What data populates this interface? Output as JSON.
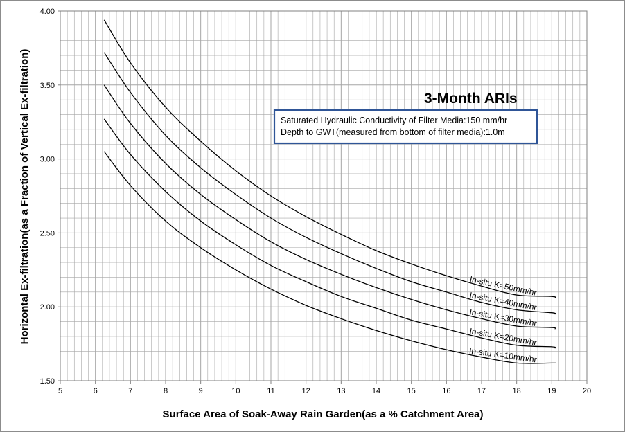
{
  "chart_data": {
    "type": "line",
    "title": "3-Month ARIs",
    "xlabel": "Surface Area of Soak-Away Rain Garden(as a %  Catchment Area)",
    "ylabel": "Horizontal Ex-filtration(as a Fraction of Vertical Ex-filtration)",
    "xlim": [
      5,
      20
    ],
    "ylim": [
      1.5,
      4.0
    ],
    "x_ticks": [
      "5",
      "6",
      "7",
      "8",
      "9",
      "10",
      "11",
      "12",
      "13",
      "14",
      "15",
      "16",
      "17",
      "18",
      "19",
      "20"
    ],
    "y_ticks": [
      "1.50",
      "2.00",
      "2.50",
      "3.00",
      "3.50",
      "4.00"
    ],
    "grid": true,
    "note": {
      "line1": "Saturated Hydraulic Conductivity of Filter Media:150 mm/hr",
      "line2": "Depth to GWT(measured from bottom of filter media):1.0m"
    },
    "x": [
      6.25,
      7,
      8,
      9,
      10,
      11,
      12,
      13,
      14,
      15,
      16,
      17,
      18,
      19,
      19.1
    ],
    "series": [
      {
        "name": "In-situ K=50mm/hr",
        "values": [
          3.94,
          3.65,
          3.35,
          3.12,
          2.92,
          2.75,
          2.61,
          2.49,
          2.38,
          2.29,
          2.21,
          2.14,
          2.08,
          2.07,
          2.06
        ]
      },
      {
        "name": "In-situ K=40mm/hr",
        "values": [
          3.72,
          3.45,
          3.16,
          2.94,
          2.76,
          2.6,
          2.47,
          2.36,
          2.26,
          2.17,
          2.1,
          2.03,
          1.98,
          1.96,
          1.95
        ]
      },
      {
        "name": "In-situ K=30mm/hr",
        "values": [
          3.5,
          3.24,
          2.97,
          2.76,
          2.59,
          2.44,
          2.32,
          2.22,
          2.13,
          2.05,
          1.98,
          1.92,
          1.87,
          1.86,
          1.85
        ]
      },
      {
        "name": "In-situ K=20mm/hr",
        "values": [
          3.27,
          3.03,
          2.78,
          2.58,
          2.42,
          2.28,
          2.17,
          2.07,
          1.99,
          1.91,
          1.85,
          1.79,
          1.74,
          1.73,
          1.72
        ]
      },
      {
        "name": "In-situ K=10mm/hr",
        "values": [
          3.05,
          2.82,
          2.58,
          2.4,
          2.25,
          2.12,
          2.01,
          1.92,
          1.84,
          1.77,
          1.71,
          1.66,
          1.62,
          1.62,
          1.62
        ]
      }
    ],
    "line_color": "#000000",
    "note_border_color": "#2f5597",
    "grid_color": "#a6a6a6"
  }
}
